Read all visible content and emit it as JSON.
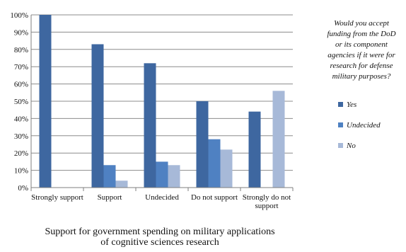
{
  "chart_data": {
    "type": "bar",
    "title_lines": [
      "Support for government spending on military applications",
      "of cognitive sciences research"
    ],
    "xlabel": "",
    "ylabel": "",
    "ylim": [
      0,
      1
    ],
    "y_ticks": [
      "0%",
      "10%",
      "20%",
      "30%",
      "40%",
      "50%",
      "60%",
      "70%",
      "80%",
      "90%",
      "100%"
    ],
    "grid": true,
    "legend_position": "right",
    "legend_title_lines": [
      "Would you accept",
      "funding from the DoD",
      "or its component",
      "agencies if it were for",
      "research for defense",
      "military purposes?"
    ],
    "categories": [
      [
        "Strongly support"
      ],
      [
        "Support"
      ],
      [
        "Undecided"
      ],
      [
        "Do not support"
      ],
      [
        "Strongly do not",
        "support"
      ]
    ],
    "series": [
      {
        "name": "Yes",
        "color": "#3e67a0",
        "values": [
          1.0,
          0.83,
          0.72,
          0.5,
          0.44
        ]
      },
      {
        "name": "Undecided",
        "color": "#4f81c2",
        "values": [
          0.0,
          0.13,
          0.15,
          0.28,
          0.0
        ]
      },
      {
        "name": "No",
        "color": "#a7b9d8",
        "values": [
          0.0,
          0.04,
          0.13,
          0.22,
          0.56
        ]
      }
    ]
  }
}
